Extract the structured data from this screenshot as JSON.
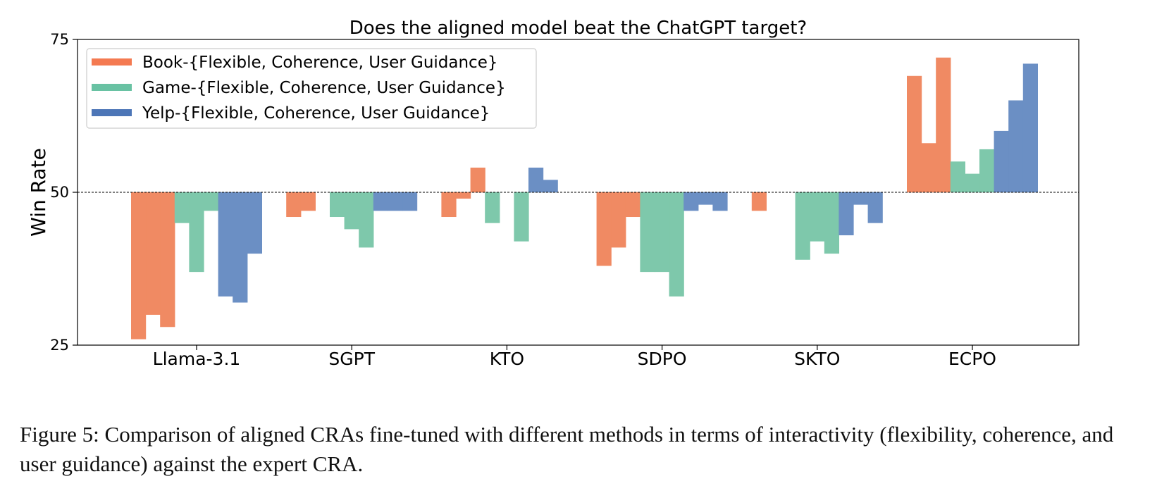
{
  "chart_data": {
    "type": "bar",
    "title": "Does the aligned model beat the ChatGPT target?",
    "xlabel": "",
    "ylabel": "Win Rate",
    "ylim": [
      25,
      75
    ],
    "yticks": [
      25,
      50,
      75
    ],
    "baseline": 50,
    "grid": false,
    "legend_placement": "top-left",
    "categories": [
      "Llama-3.1",
      "SGPT",
      "KTO",
      "SDPO",
      "SKTO",
      "ECPO"
    ],
    "series": [
      {
        "name": "Book-{Flexible, Coherence, User Guidance}",
        "color": "#f08a63",
        "legend_color": "#f47a51",
        "values": [
          [
            26,
            30,
            28
          ],
          [
            46,
            47,
            50
          ],
          [
            46,
            49,
            54
          ],
          [
            38,
            41,
            46
          ],
          [
            47,
            50,
            50
          ],
          [
            69,
            58,
            72
          ]
        ]
      },
      {
        "name": "Game-{Flexible, Coherence, User Guidance}",
        "color": "#7ec8ab",
        "legend_color": "#69c2a3",
        "values": [
          [
            45,
            37,
            47
          ],
          [
            46,
            44,
            41
          ],
          [
            45,
            50,
            42
          ],
          [
            37,
            37,
            33
          ],
          [
            39,
            42,
            40
          ],
          [
            55,
            53,
            57
          ]
        ]
      },
      {
        "name": "Yelp-{Flexible, Coherence, User Guidance}",
        "color": "#6b8fc4",
        "legend_color": "#4d76b7",
        "values": [
          [
            33,
            32,
            40
          ],
          [
            47,
            47,
            47
          ],
          [
            54,
            52,
            50
          ],
          [
            47,
            48,
            47
          ],
          [
            43,
            48,
            45
          ],
          [
            60,
            65,
            71
          ]
        ]
      }
    ]
  },
  "caption": "Figure 5: Comparison of aligned CRAs fine-tuned with different methods in terms of interactivity (flexibility, coherence, and user guidance) against the expert CRA."
}
